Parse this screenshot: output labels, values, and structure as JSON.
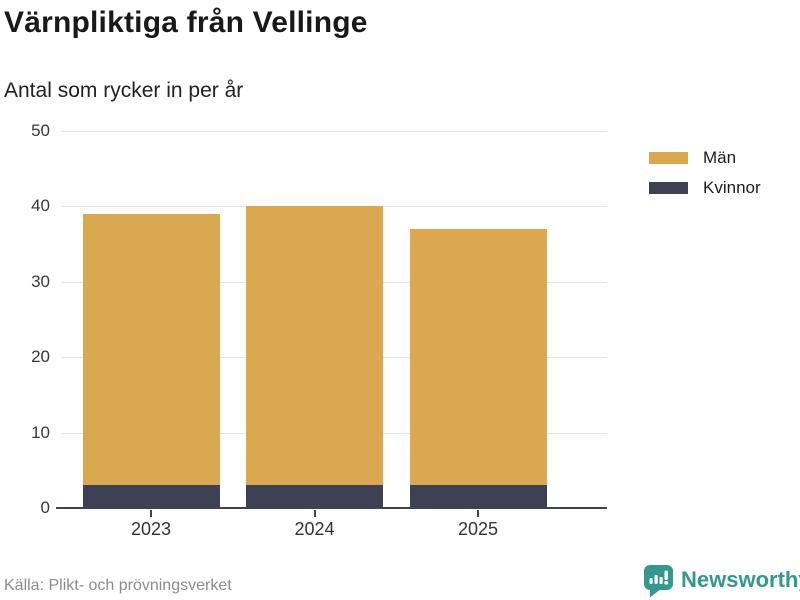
{
  "chart_data": {
    "type": "bar",
    "stacked": true,
    "title": "Värnpliktiga från Vellinge",
    "subtitle": "Antal som rycker in per år",
    "categories": [
      "2023",
      "2024",
      "2025"
    ],
    "series": [
      {
        "name": "Kvinnor",
        "color": "#3E4154",
        "values": [
          3,
          3,
          3
        ]
      },
      {
        "name": "Män",
        "color": "#D9A850",
        "values": [
          36,
          37,
          34
        ]
      }
    ],
    "totals": [
      39,
      40,
      37
    ],
    "legend_order": [
      "Män",
      "Kvinnor"
    ],
    "legend_position": "right",
    "xlabel": "",
    "ylabel": "",
    "ylim": [
      0,
      50
    ],
    "yticks": [
      0,
      10,
      20,
      30,
      40,
      50
    ],
    "grid": true
  },
  "footer": {
    "source": "Källa: Plikt- och prövningsverket",
    "brand": "Newsworthy"
  },
  "colors": {
    "men": "#D9A850",
    "women": "#3E4154",
    "grid": "#E4E4E4",
    "axis": "#3F4254",
    "brand_teal": "#35988E",
    "title_text": "#191919",
    "source_text": "#8C8C8C"
  }
}
